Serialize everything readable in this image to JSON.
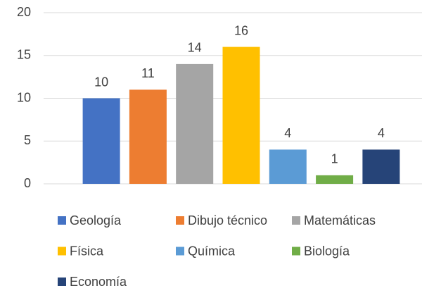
{
  "chart_data": {
    "type": "bar",
    "categories": [
      null
    ],
    "series": [
      {
        "name": "Geología",
        "color": "#4472c4",
        "values": [
          10
        ]
      },
      {
        "name": "Dibujo técnico",
        "color": "#ed7d31",
        "values": [
          11
        ]
      },
      {
        "name": "Matemáticas",
        "color": "#a5a5a5",
        "values": [
          14
        ]
      },
      {
        "name": "Física",
        "color": "#ffc000",
        "values": [
          16
        ]
      },
      {
        "name": "Química",
        "color": "#5b9bd5",
        "values": [
          4
        ]
      },
      {
        "name": "Biología",
        "color": "#70ad47",
        "values": [
          1
        ]
      },
      {
        "name": "Economía",
        "color": "#264478",
        "values": [
          4
        ]
      }
    ],
    "ylim": [
      0,
      20
    ],
    "yticks": [
      0,
      5,
      10,
      15,
      20
    ],
    "grid": true,
    "legend": "bottom",
    "data_labels": true
  }
}
